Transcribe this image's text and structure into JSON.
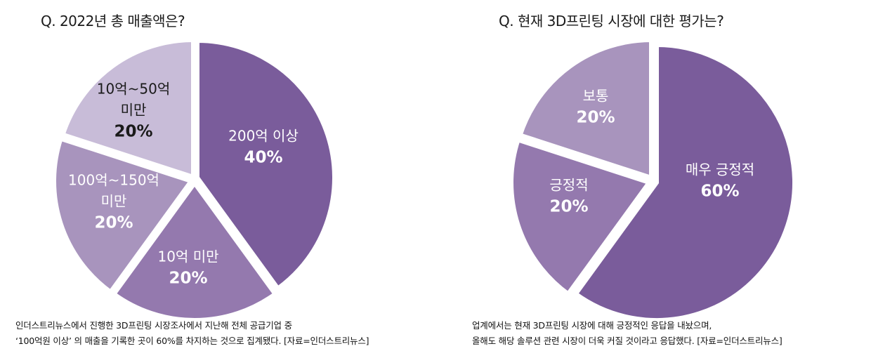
{
  "colors": {
    "dark": "#7a5c9b",
    "medium_dark": "#9479ae",
    "medium": "#a894bd",
    "light": "#c8bcd8"
  },
  "left_chart": {
    "title": "Q. 2022년 총 매출액은?",
    "caption_lines": [
      "인더스트리뉴스에서 진행한 3D프린팅 시장조사에서 지난해 전체 공급기업 중",
      "‘100억원 이상’ 의 매출을 기록한 곳이 60%를 차지하는 것으로 집계됐다. [자료=인더스트리뉴스]"
    ]
  },
  "right_chart": {
    "title": "Q. 현재 3D프린팅 시장에 대한 평가는?",
    "caption_lines": [
      "업계에서는 현재 3D프린팅 시장에 대해 긍정적인 응답을 내놨으며,",
      "올해도 해당 솔루션 관련 시장이 더욱 커질 것이라고 응답했다. [자료=인더스트리뉴스]"
    ]
  },
  "chart_data": [
    {
      "type": "pie",
      "title": "Q. 2022년 총 매출액은?",
      "slices": [
        {
          "label_lines": [
            "200억 이상"
          ],
          "value_text": "40%",
          "value": 40,
          "color": "#7a5c9b"
        },
        {
          "label_lines": [
            "10억 미만"
          ],
          "value_text": "20%",
          "value": 20,
          "color": "#9479ae"
        },
        {
          "label_lines": [
            "100억~150억",
            "미만"
          ],
          "value_text": "20%",
          "value": 20,
          "color": "#a894bd"
        },
        {
          "label_lines": [
            "10억~50억",
            "미만"
          ],
          "value_text": "20%",
          "value": 20,
          "color": "#c8bcd8"
        }
      ]
    },
    {
      "type": "pie",
      "title": "Q. 현재 3D프린팅 시장에 대한 평가는?",
      "slices": [
        {
          "label_lines": [
            "매우 긍정적"
          ],
          "value_text": "60%",
          "value": 60,
          "color": "#7a5c9b"
        },
        {
          "label_lines": [
            "긍정적"
          ],
          "value_text": "20%",
          "value": 20,
          "color": "#9479ae"
        },
        {
          "label_lines": [
            "보통"
          ],
          "value_text": "20%",
          "value": 20,
          "color": "#a894bd"
        }
      ]
    }
  ]
}
